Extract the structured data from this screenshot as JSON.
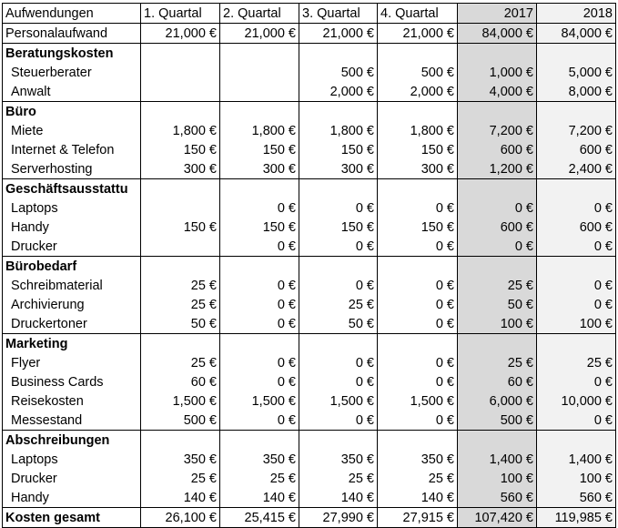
{
  "table": {
    "columns": [
      "Aufwendungen",
      "1. Quartal",
      "2. Quartal",
      "3. Quartal",
      "4. Quartal",
      "2017",
      "2018"
    ],
    "rows": [
      {
        "kind": "data",
        "label": "Personalaufwand",
        "values": [
          "21,000 €",
          "21,000 €",
          "21,000 €",
          "21,000 €",
          "84,000 €",
          "84,000 €"
        ]
      },
      {
        "kind": "section",
        "label": "Beratungskosten"
      },
      {
        "kind": "item",
        "label": "Steuerberater",
        "values": [
          "",
          "",
          "500 €",
          "500 €",
          "1,000 €",
          "5,000 €"
        ]
      },
      {
        "kind": "item",
        "label": "Anwalt",
        "values": [
          "",
          "",
          "2,000 €",
          "2,000 €",
          "4,000 €",
          "8,000 €"
        ]
      },
      {
        "kind": "section",
        "label": "Büro"
      },
      {
        "kind": "item",
        "label": "Miete",
        "values": [
          "1,800 €",
          "1,800 €",
          "1,800 €",
          "1,800 €",
          "7,200 €",
          "7,200 €"
        ]
      },
      {
        "kind": "item",
        "label": "Internet & Telefon",
        "values": [
          "150 €",
          "150 €",
          "150 €",
          "150 €",
          "600 €",
          "600 €"
        ]
      },
      {
        "kind": "item",
        "label": "Serverhosting",
        "values": [
          "300 €",
          "300 €",
          "300 €",
          "300 €",
          "1,200 €",
          "2,400 €"
        ]
      },
      {
        "kind": "section",
        "label": "Geschäftsausstattu"
      },
      {
        "kind": "item",
        "label": "Laptops",
        "values": [
          "",
          "0 €",
          "0 €",
          "0 €",
          "0 €",
          "0 €"
        ]
      },
      {
        "kind": "item",
        "label": "Handy",
        "values": [
          "150 €",
          "150 €",
          "150 €",
          "150 €",
          "600 €",
          "600 €"
        ]
      },
      {
        "kind": "item",
        "label": "Drucker",
        "values": [
          "",
          "0 €",
          "0 €",
          "0 €",
          "0 €",
          "0 €"
        ]
      },
      {
        "kind": "section",
        "label": "Bürobedarf"
      },
      {
        "kind": "item",
        "label": "Schreibmaterial",
        "values": [
          "25 €",
          "0 €",
          "0 €",
          "0 €",
          "25 €",
          "0 €"
        ]
      },
      {
        "kind": "item",
        "label": "Archivierung",
        "values": [
          "25 €",
          "0 €",
          "25 €",
          "0 €",
          "50 €",
          "0 €"
        ]
      },
      {
        "kind": "item",
        "label": "Druckertoner",
        "values": [
          "50 €",
          "0 €",
          "50 €",
          "0 €",
          "100 €",
          "100 €"
        ]
      },
      {
        "kind": "section",
        "label": "Marketing"
      },
      {
        "kind": "item",
        "label": "Flyer",
        "values": [
          "25 €",
          "0 €",
          "0 €",
          "0 €",
          "25 €",
          "25 €"
        ]
      },
      {
        "kind": "item",
        "label": "Business Cards",
        "values": [
          "60 €",
          "0 €",
          "0 €",
          "0 €",
          "60 €",
          "0 €"
        ]
      },
      {
        "kind": "item",
        "label": "Reisekosten",
        "values": [
          "1,500 €",
          "1,500 €",
          "1,500 €",
          "1,500 €",
          "6,000 €",
          "10,000 €"
        ]
      },
      {
        "kind": "item",
        "label": "Messestand",
        "values": [
          "500 €",
          "0 €",
          "0 €",
          "0 €",
          "500 €",
          "0 €"
        ]
      },
      {
        "kind": "section",
        "label": "Abschreibungen"
      },
      {
        "kind": "item",
        "label": "Laptops",
        "values": [
          "350 €",
          "350 €",
          "350 €",
          "350 €",
          "1,400 €",
          "1,400 €"
        ]
      },
      {
        "kind": "item",
        "label": "Drucker",
        "values": [
          "25 €",
          "25 €",
          "25 €",
          "25 €",
          "100 €",
          "100 €"
        ]
      },
      {
        "kind": "item",
        "label": "Handy",
        "values": [
          "140 €",
          "140 €",
          "140 €",
          "140 €",
          "560 €",
          "560 €"
        ]
      },
      {
        "kind": "total",
        "label": "Kosten gesamt",
        "values": [
          "26,100 €",
          "25,415 €",
          "27,990 €",
          "27,915 €",
          "107,420 €",
          "119,985 €"
        ]
      }
    ]
  },
  "colors": {
    "year_2017_fill": "#d9d9d9",
    "year_2018_fill": "#f2f2f2",
    "grid_lines": "#000000"
  }
}
